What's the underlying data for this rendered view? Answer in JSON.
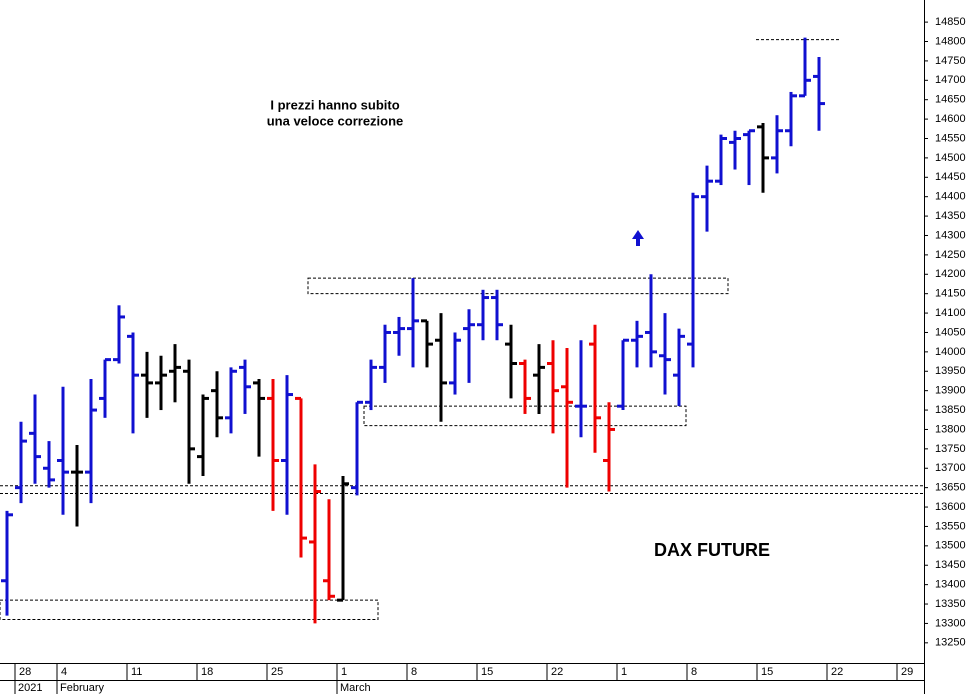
{
  "chart_data": {
    "type": "ohlc",
    "title": "DAX FUTURE",
    "annotation": [
      "I prezzi hanno subito",
      "una veloce correzione"
    ],
    "categories": [
      null,
      "28",
      null,
      null,
      "4",
      null,
      null,
      null,
      null,
      "11",
      null,
      null,
      null,
      null,
      "18",
      null,
      null,
      null,
      null,
      "25",
      null,
      null,
      null,
      null,
      "1",
      null,
      null,
      null,
      null,
      "8",
      null,
      null,
      null,
      null,
      "15",
      null,
      null,
      null,
      null,
      "22",
      null,
      null,
      null,
      null,
      "1",
      null,
      null,
      null,
      null,
      "8",
      null,
      null,
      null,
      null,
      "15",
      null,
      null,
      null,
      null,
      "22",
      null,
      null,
      null,
      null,
      "29",
      null
    ],
    "months": [
      "2021",
      "February",
      "March"
    ],
    "open": [
      13410,
      13650,
      13790,
      13700,
      13720,
      13690,
      13690,
      13880,
      13980,
      14040,
      13940,
      13920,
      13950,
      13950,
      13730,
      13900,
      13830,
      13960,
      13920,
      13880,
      13720,
      13880,
      13510,
      13410,
      13360,
      13650,
      13870,
      13960,
      14050,
      14060,
      14080,
      14030,
      13920,
      14060,
      14070,
      14140,
      14020,
      13970,
      13940,
      13970,
      13910,
      13860,
      14020,
      13720,
      13860,
      14030,
      14050,
      13990,
      13940,
      14020,
      14400,
      14440,
      14540,
      14560,
      14580,
      14500,
      14570,
      14660,
      14710,
      null,
      null,
      null,
      null,
      null,
      null,
      null
    ],
    "high": [
      13590,
      13820,
      13890,
      13770,
      13910,
      13760,
      13930,
      13980,
      14120,
      14050,
      14000,
      13990,
      14020,
      13980,
      13890,
      13950,
      13960,
      13980,
      13930,
      13930,
      13940,
      13880,
      13710,
      13620,
      13680,
      13870,
      13980,
      14070,
      14090,
      14190,
      14080,
      14100,
      14050,
      14110,
      14160,
      14160,
      14070,
      13980,
      14020,
      14030,
      14010,
      14030,
      14070,
      13870,
      14030,
      14080,
      14200,
      14100,
      14060,
      14410,
      14480,
      14560,
      14570,
      14570,
      14590,
      14610,
      14670,
      14810,
      14760,
      null,
      null,
      null,
      null,
      null,
      null,
      null
    ],
    "low": [
      13320,
      13610,
      13660,
      13650,
      13580,
      13550,
      13610,
      13830,
      13970,
      13790,
      13830,
      13850,
      13870,
      13660,
      13680,
      13780,
      13790,
      13840,
      13730,
      13590,
      13580,
      13470,
      13300,
      13360,
      13360,
      13630,
      13850,
      13920,
      13990,
      13960,
      13960,
      13820,
      13890,
      13920,
      14030,
      14030,
      13880,
      13840,
      13840,
      13790,
      13650,
      13780,
      13740,
      13640,
      13850,
      13960,
      13960,
      13890,
      13860,
      13960,
      14310,
      14430,
      14470,
      14430,
      14410,
      14460,
      14530,
      14660,
      14570,
      null,
      null,
      null,
      null,
      null,
      null,
      null
    ],
    "close": [
      13580,
      13770,
      13730,
      13670,
      13690,
      13690,
      13850,
      13980,
      14090,
      13940,
      13920,
      13940,
      13960,
      13750,
      13880,
      13830,
      13950,
      13910,
      13880,
      13720,
      13890,
      13520,
      13640,
      13370,
      13660,
      13870,
      13960,
      14050,
      14060,
      14080,
      14020,
      13920,
      14030,
      14070,
      14140,
      14070,
      13970,
      13880,
      13960,
      13900,
      13870,
      13860,
      13830,
      13800,
      14030,
      14040,
      14000,
      13980,
      14040,
      14400,
      14440,
      14550,
      14550,
      14570,
      14500,
      14570,
      14660,
      14700,
      14640,
      null,
      null,
      null,
      null,
      null,
      null,
      null
    ],
    "colors": [
      "#1010d0",
      "#1010d0",
      "#1010d0",
      "#1010d0",
      "#1010d0",
      "#000000",
      "#1010d0",
      "#1010d0",
      "#1010d0",
      "#1010d0",
      "#000000",
      "#000000",
      "#000000",
      "#000000",
      "#000000",
      "#000000",
      "#1010d0",
      "#1010d0",
      "#000000",
      "#ee0000",
      "#1010d0",
      "#ee0000",
      "#ee0000",
      "#ee0000",
      "#000000",
      "#1010d0",
      "#1010d0",
      "#1010d0",
      "#1010d0",
      "#1010d0",
      "#000000",
      "#000000",
      "#1010d0",
      "#1010d0",
      "#1010d0",
      "#1010d0",
      "#000000",
      "#ee0000",
      "#000000",
      "#ee0000",
      "#ee0000",
      "#1010d0",
      "#ee0000",
      "#ee0000",
      "#1010d0",
      "#1010d0",
      "#1010d0",
      "#1010d0",
      "#1010d0",
      "#1010d0",
      "#1010d0",
      "#1010d0",
      "#1010d0",
      "#1010d0",
      "#000000",
      "#1010d0",
      "#1010d0",
      "#1010d0",
      "#1010d0",
      null,
      null,
      null,
      null,
      null,
      null,
      null
    ],
    "hlines": [
      13655,
      13635
    ],
    "zones": [
      {
        "low": 13310,
        "high": 13360,
        "from": 0,
        "to": 27
      },
      {
        "low": 14150,
        "high": 14190,
        "from": 22,
        "to": 52
      },
      {
        "low": 13810,
        "high": 13860,
        "from": 26,
        "to": 49
      },
      {
        "low": 14805,
        "high": 14805,
        "from": 54,
        "to": 60
      }
    ],
    "ylim": [
      13198,
      14907
    ],
    "yticks": [
      13250,
      13300,
      13350,
      13400,
      13450,
      13500,
      13550,
      13600,
      13650,
      13700,
      13750,
      13800,
      13850,
      13900,
      13950,
      14000,
      14050,
      14100,
      14150,
      14200,
      14250,
      14300,
      14350,
      14400,
      14450,
      14500,
      14550,
      14600,
      14650,
      14700,
      14750,
      14800,
      14850
    ]
  }
}
